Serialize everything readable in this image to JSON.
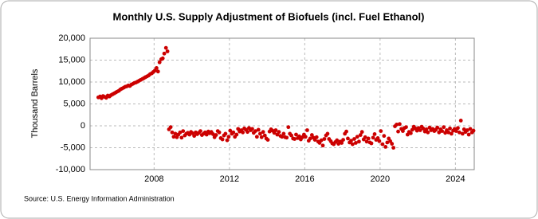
{
  "chart_data": {
    "type": "scatter",
    "title": "Monthly U.S. Supply Adjustment of Biofuels (incl. Fuel Ethanol)",
    "y_label": "Thousand Barrels",
    "source": "Source: U.S. Energy Information Administration",
    "color": "#cc0000",
    "grid": true,
    "xlim": [
      2004.6,
      2025.0
    ],
    "xticks": [
      2008,
      2012,
      2016,
      2020,
      2024
    ],
    "ylim": [
      -10000,
      20000
    ],
    "yticks": [
      {
        "value": -10000,
        "label": "-10,000"
      },
      {
        "value": -5000,
        "label": "-5,000"
      },
      0,
      {
        "value": 5000,
        "label": "5,000"
      },
      {
        "value": 10000,
        "label": "10,000"
      },
      {
        "value": 15000,
        "label": "15,000"
      },
      {
        "value": 20000,
        "label": "20,000"
      }
    ],
    "x": [
      2005.04,
      2005.13,
      2005.21,
      2005.29,
      2005.38,
      2005.46,
      2005.54,
      2005.63,
      2005.71,
      2005.79,
      2005.88,
      2005.96,
      2006.04,
      2006.13,
      2006.21,
      2006.29,
      2006.38,
      2006.46,
      2006.54,
      2006.63,
      2006.71,
      2006.79,
      2006.88,
      2006.96,
      2007.04,
      2007.13,
      2007.21,
      2007.29,
      2007.38,
      2007.46,
      2007.54,
      2007.63,
      2007.71,
      2007.79,
      2007.88,
      2007.96,
      2008.04,
      2008.13,
      2008.21,
      2008.29,
      2008.38,
      2008.46,
      2008.54,
      2008.63,
      2008.71,
      2008.79,
      2008.88,
      2008.96,
      2009.04,
      2009.13,
      2009.21,
      2009.29,
      2009.38,
      2009.46,
      2009.54,
      2009.63,
      2009.71,
      2009.79,
      2009.88,
      2009.96,
      2010.04,
      2010.13,
      2010.21,
      2010.29,
      2010.38,
      2010.46,
      2010.54,
      2010.63,
      2010.71,
      2010.79,
      2010.88,
      2010.96,
      2011.04,
      2011.13,
      2011.21,
      2011.29,
      2011.38,
      2011.46,
      2011.54,
      2011.63,
      2011.71,
      2011.79,
      2011.88,
      2011.96,
      2012.04,
      2012.13,
      2012.21,
      2012.29,
      2012.38,
      2012.46,
      2012.54,
      2012.63,
      2012.71,
      2012.79,
      2012.88,
      2012.96,
      2013.04,
      2013.13,
      2013.21,
      2013.29,
      2013.38,
      2013.46,
      2013.54,
      2013.63,
      2013.71,
      2013.79,
      2013.88,
      2013.96,
      2014.04,
      2014.13,
      2014.21,
      2014.29,
      2014.38,
      2014.46,
      2014.54,
      2014.63,
      2014.71,
      2014.79,
      2014.88,
      2014.96,
      2015.04,
      2015.13,
      2015.21,
      2015.29,
      2015.38,
      2015.46,
      2015.54,
      2015.63,
      2015.71,
      2015.79,
      2015.88,
      2015.96,
      2016.04,
      2016.13,
      2016.21,
      2016.29,
      2016.38,
      2016.46,
      2016.54,
      2016.63,
      2016.71,
      2016.79,
      2016.88,
      2016.96,
      2017.04,
      2017.13,
      2017.21,
      2017.29,
      2017.38,
      2017.46,
      2017.54,
      2017.63,
      2017.71,
      2017.79,
      2017.88,
      2017.96,
      2018.04,
      2018.13,
      2018.21,
      2018.29,
      2018.38,
      2018.46,
      2018.54,
      2018.63,
      2018.71,
      2018.79,
      2018.88,
      2018.96,
      2019.04,
      2019.13,
      2019.21,
      2019.29,
      2019.38,
      2019.46,
      2019.54,
      2019.63,
      2019.71,
      2019.79,
      2019.88,
      2019.96,
      2020.04,
      2020.13,
      2020.21,
      2020.29,
      2020.38,
      2020.46,
      2020.54,
      2020.63,
      2020.71,
      2020.79,
      2020.88,
      2020.96,
      2021.04,
      2021.13,
      2021.21,
      2021.29,
      2021.38,
      2021.46,
      2021.54,
      2021.63,
      2021.71,
      2021.79,
      2021.88,
      2021.96,
      2022.04,
      2022.13,
      2022.21,
      2022.29,
      2022.38,
      2022.46,
      2022.54,
      2022.63,
      2022.71,
      2022.79,
      2022.88,
      2022.96,
      2023.04,
      2023.13,
      2023.21,
      2023.29,
      2023.38,
      2023.46,
      2023.54,
      2023.63,
      2023.71,
      2023.79,
      2023.88,
      2023.96,
      2024.04,
      2024.13,
      2024.21,
      2024.29,
      2024.38,
      2024.46,
      2024.54,
      2024.63,
      2024.71,
      2024.79,
      2024.88,
      2024.96
    ],
    "values": [
      6500,
      6700,
      6300,
      6800,
      6600,
      6400,
      6900,
      6700,
      7000,
      7200,
      7400,
      7600,
      7800,
      8000,
      8300,
      8500,
      8700,
      8900,
      9000,
      9200,
      9100,
      9400,
      9600,
      9800,
      9900,
      10100,
      10300,
      10500,
      10700,
      10900,
      11100,
      11300,
      11500,
      11800,
      12000,
      12300,
      12600,
      13200,
      12400,
      14500,
      15200,
      15400,
      16500,
      17800,
      17000,
      -800,
      -300,
      -1500,
      -2500,
      -1800,
      -2600,
      -2000,
      -1500,
      -2700,
      -1200,
      -2200,
      -1800,
      -1600,
      -2000,
      -1400,
      -1700,
      -2300,
      -1500,
      -1900,
      -1600,
      -1200,
      -2100,
      -1800,
      -1500,
      -2000,
      -1300,
      -1700,
      -1400,
      -1900,
      -2600,
      -2100,
      -1200,
      -1500,
      -2800,
      -3100,
      -2200,
      -1800,
      -3300,
      -2500,
      -1100,
      -1800,
      -1500,
      -2500,
      -2000,
      -700,
      -1300,
      -1000,
      -1500,
      -600,
      -900,
      -1400,
      -500,
      -1000,
      -700,
      -1600,
      -1200,
      -2500,
      -900,
      -1800,
      -2600,
      -1400,
      -2200,
      -2900,
      -3200,
      -1300,
      -800,
      -1100,
      -1600,
      -1000,
      -2000,
      -1400,
      -2300,
      -2500,
      -1800,
      -2600,
      -2700,
      -300,
      -1800,
      -2200,
      -2900,
      -3000,
      -2000,
      -2800,
      -2400,
      -3100,
      -2600,
      -2000,
      -2500,
      -1000,
      -3400,
      -2900,
      -2100,
      -2700,
      -3200,
      -2600,
      -3600,
      -3900,
      -3300,
      -4500,
      -3000,
      -2200,
      -1800,
      -3000,
      -3500,
      -4000,
      -4200,
      -3700,
      -3300,
      -4100,
      -3600,
      -3900,
      -3200,
      -1800,
      -1300,
      -2900,
      -3800,
      -3400,
      -4200,
      -3000,
      -3900,
      -2500,
      -3600,
      -2100,
      -1400,
      -3100,
      -2600,
      -3600,
      -2900,
      -3800,
      -4000,
      -2700,
      -1900,
      -3200,
      -2800,
      -3500,
      -1200,
      -4200,
      -2300,
      -4800,
      -3800,
      -2900,
      -3500,
      -4100,
      -5000,
      -100,
      300,
      -1300,
      400,
      -700,
      -1200,
      -500,
      -300,
      -2000,
      -1400,
      -1700,
      -900,
      -200,
      -600,
      -1100,
      -500,
      -1000,
      -200,
      -600,
      -1300,
      -800,
      -1500,
      -400,
      -1000,
      -700,
      -1200,
      -900,
      -400,
      -1500,
      -800,
      -1200,
      -300,
      -1600,
      -1000,
      -1500,
      -600,
      -1800,
      -1100,
      -700,
      -1200,
      -500,
      -1500,
      1200,
      -1800,
      -800,
      -1400,
      -1000,
      -2000,
      -700,
      -1500,
      -1100
    ]
  }
}
